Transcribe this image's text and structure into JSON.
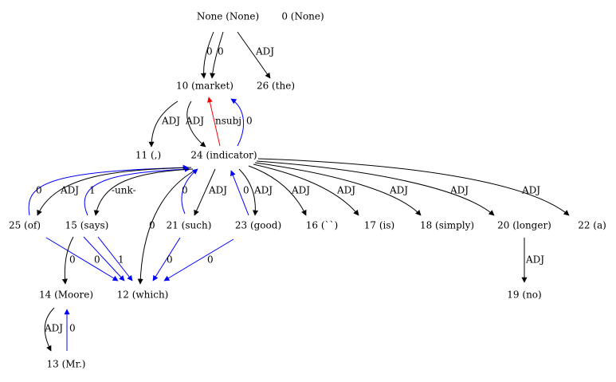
{
  "colors": {
    "black": "#000000",
    "blue": "#0000ff",
    "red": "#ff0000"
  },
  "nodes": [
    {
      "id": "n_none",
      "label": "None (None)"
    },
    {
      "id": "n_0",
      "label": "0 (None)"
    },
    {
      "id": "n_10",
      "label": "10 (market)"
    },
    {
      "id": "n_26",
      "label": "26 (the)"
    },
    {
      "id": "n_11",
      "label": "11 (,)"
    },
    {
      "id": "n_24",
      "label": "24 (indicator)"
    },
    {
      "id": "n_25",
      "label": "25 (of)"
    },
    {
      "id": "n_15",
      "label": "15 (says)"
    },
    {
      "id": "n_21",
      "label": "21 (such)"
    },
    {
      "id": "n_23",
      "label": "23 (good)"
    },
    {
      "id": "n_16",
      "label": "16 (``)"
    },
    {
      "id": "n_17",
      "label": "17 (is)"
    },
    {
      "id": "n_18",
      "label": "18 (simply)"
    },
    {
      "id": "n_20",
      "label": "20 (longer)"
    },
    {
      "id": "n_22",
      "label": "22 (a)"
    },
    {
      "id": "n_14",
      "label": "14 (Moore)"
    },
    {
      "id": "n_12",
      "label": "12 (which)"
    },
    {
      "id": "n_19",
      "label": "19 (no)"
    },
    {
      "id": "n_13",
      "label": "13 (Mr.)"
    }
  ],
  "edges": [
    {
      "id": "e_none_10_a",
      "label": "0",
      "color": "black"
    },
    {
      "id": "e_none_10_b",
      "label": "0",
      "color": "black"
    },
    {
      "id": "e_none_26",
      "label": "ADJ",
      "color": "black"
    },
    {
      "id": "e_10_11",
      "label": "ADJ",
      "color": "black"
    },
    {
      "id": "e_10_24",
      "label": "ADJ",
      "color": "black"
    },
    {
      "id": "e_24_10_nsubj",
      "label": "nsubj",
      "color": "red"
    },
    {
      "id": "e_24_10_0",
      "label": "0",
      "color": "blue"
    },
    {
      "id": "e_25_24",
      "label": "0",
      "color": "blue"
    },
    {
      "id": "e_24_25",
      "label": "ADJ",
      "color": "black"
    },
    {
      "id": "e_15_24",
      "label": "1",
      "color": "blue"
    },
    {
      "id": "e_24_15",
      "label": "-unk-",
      "color": "black"
    },
    {
      "id": "e_24_12",
      "label": "0",
      "color": "black"
    },
    {
      "id": "e_21_24",
      "label": "0",
      "color": "blue"
    },
    {
      "id": "e_24_21",
      "label": "ADJ",
      "color": "black"
    },
    {
      "id": "e_23_24",
      "label": "0",
      "color": "blue"
    },
    {
      "id": "e_24_23",
      "label": "ADJ",
      "color": "black"
    },
    {
      "id": "e_24_16",
      "label": "ADJ",
      "color": "black"
    },
    {
      "id": "e_24_17",
      "label": "ADJ",
      "color": "black"
    },
    {
      "id": "e_24_18",
      "label": "ADJ",
      "color": "black"
    },
    {
      "id": "e_24_20",
      "label": "ADJ",
      "color": "black"
    },
    {
      "id": "e_24_22",
      "label": "ADJ",
      "color": "black"
    },
    {
      "id": "e_25_12",
      "label": "",
      "color": "blue"
    },
    {
      "id": "e_15_14",
      "label": "0",
      "color": "black"
    },
    {
      "id": "e_15_12_0",
      "label": "0",
      "color": "blue"
    },
    {
      "id": "e_15_12_1",
      "label": "1",
      "color": "blue"
    },
    {
      "id": "e_21_12",
      "label": "0",
      "color": "blue"
    },
    {
      "id": "e_23_12",
      "label": "0",
      "color": "blue"
    },
    {
      "id": "e_20_19",
      "label": "ADJ",
      "color": "black"
    },
    {
      "id": "e_14_13",
      "label": "ADJ",
      "color": "black"
    },
    {
      "id": "e_13_14",
      "label": "0",
      "color": "blue"
    }
  ]
}
